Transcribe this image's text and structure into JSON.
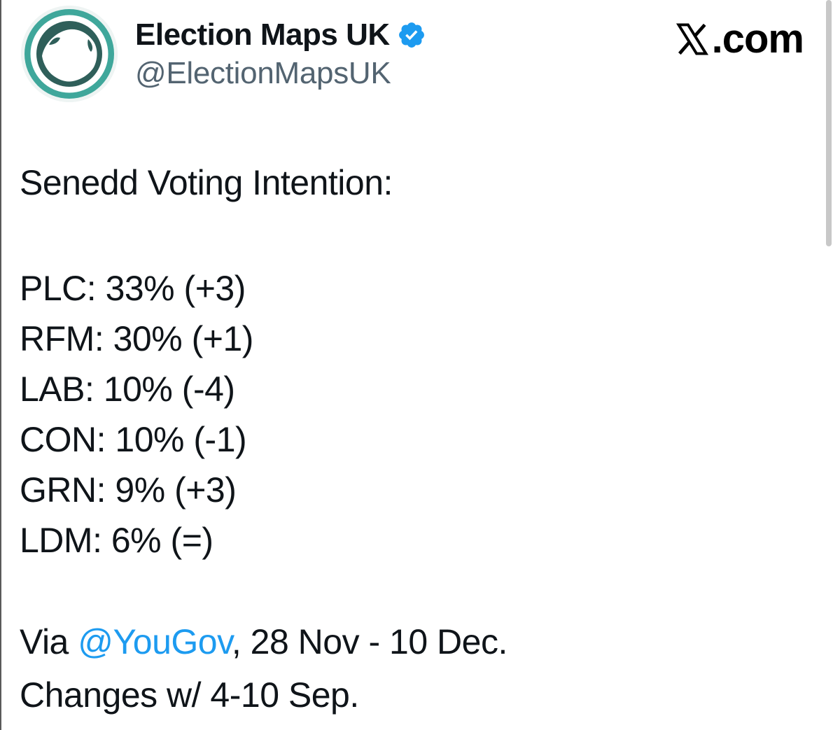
{
  "profile": {
    "display_name": "Election Maps UK",
    "handle": "@ElectionMapsUK",
    "verified_icon": "verified-badge-icon",
    "avatar_icon": "globe-logo-icon"
  },
  "brand": {
    "text": ".com",
    "icon": "x-logo-icon"
  },
  "tweet": {
    "title": "Senedd Voting Intention:",
    "results": [
      {
        "party": "PLC",
        "share": "33%",
        "change": "(+3)"
      },
      {
        "party": "RFM",
        "share": "30%",
        "change": "(+1)"
      },
      {
        "party": "LAB",
        "share": "10%",
        "change": "(-4)"
      },
      {
        "party": "CON",
        "share": "10%",
        "change": "(-1)"
      },
      {
        "party": "GRN",
        "share": "9%",
        "change": "(+3)"
      },
      {
        "party": "LDM",
        "share": "6%",
        "change": "(=)"
      }
    ],
    "via_prefix": "Via ",
    "via_mention": "@YouGov",
    "via_suffix": ", 28 Nov - 10 Dec.",
    "changes_note": "Changes w/ 4-10 Sep."
  },
  "colors": {
    "link": "#1d9bf0",
    "verified": "#1d9bf0",
    "handle": "#536471",
    "avatar_teal": "#3fa79b",
    "avatar_dark": "#2f5f5a"
  }
}
